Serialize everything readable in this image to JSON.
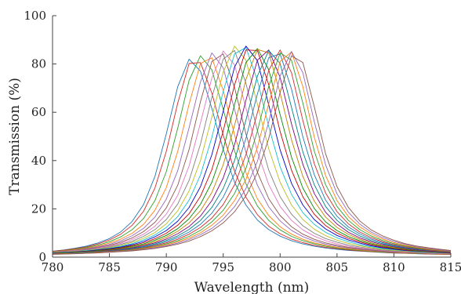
{
  "chart_data": {
    "type": "line",
    "title": "",
    "xlabel": "Wavelength (nm)",
    "ylabel": "Transmission (%)",
    "xlim": [
      780,
      815
    ],
    "ylim": [
      0,
      100
    ],
    "x_ticks": [
      "780",
      "785",
      "790",
      "795",
      "800",
      "805",
      "810",
      "815"
    ],
    "y_ticks": [
      "0",
      "20",
      "40",
      "60",
      "80",
      "100"
    ],
    "grid": false,
    "legend": "none",
    "x": [
      780,
      781,
      782,
      783,
      784,
      785,
      786,
      787,
      788,
      789,
      790,
      791,
      792,
      793,
      794,
      795,
      796,
      797,
      798,
      799,
      800,
      801,
      802,
      803,
      804,
      805,
      806,
      807,
      808,
      809,
      810,
      811,
      812,
      813,
      814,
      815
    ],
    "series_colors": [
      "#1f77b4",
      "#d62728",
      "#2ca02c",
      "#ff7f0e",
      "#9467bd",
      "#8c564b",
      "#e377c2",
      "#7f7f7f",
      "#bcbd22",
      "#17becf",
      "#0000cc",
      "#cc0000",
      "#008800",
      "#c08000",
      "#800080",
      "#008080"
    ],
    "series": [
      {
        "values": [
          2.5,
          3.0,
          3.7,
          4.6,
          5.9,
          7.7,
          10.5,
          14.8,
          21.8,
          33.4,
          51.0,
          70.6,
          82.0,
          77.0,
          61.6,
          44.6,
          31.0,
          21.6,
          15.4,
          11.4,
          8.7,
          6.8,
          5.5,
          4.5,
          3.8,
          3.2,
          2.8,
          2.5,
          2.2,
          1.9,
          1.7,
          1.6,
          1.4,
          1.3,
          1.2,
          1.1
        ]
      },
      {
        "values": [
          2.4,
          2.9,
          3.5,
          4.3,
          5.5,
          7.1,
          9.5,
          13.2,
          19.0,
          28.6,
          43.8,
          63.8,
          80.2,
          80.6,
          68.0,
          50.6,
          35.6,
          24.8,
          17.6,
          12.8,
          9.7,
          7.5,
          6.0,
          4.9,
          4.1,
          3.5,
          3.0,
          2.6,
          2.3,
          2.0,
          1.8,
          1.6,
          1.5,
          1.3,
          1.2,
          1.1
        ]
      },
      {
        "values": [
          2.3,
          2.7,
          3.3,
          4.0,
          5.0,
          6.4,
          8.4,
          11.4,
          16.0,
          23.4,
          35.4,
          53.4,
          73.2,
          83.4,
          77.6,
          61.2,
          44.0,
          30.4,
          21.2,
          15.2,
          11.3,
          8.6,
          6.8,
          5.5,
          4.5,
          3.8,
          3.2,
          2.8,
          2.4,
          2.1,
          1.9,
          1.7,
          1.5,
          1.4,
          1.3,
          1.2
        ]
      },
      {
        "values": [
          2.2,
          2.6,
          3.1,
          3.7,
          4.6,
          5.8,
          7.5,
          9.9,
          13.6,
          19.4,
          28.8,
          43.8,
          63.4,
          80.2,
          82.6,
          69.0,
          50.6,
          35.0,
          24.2,
          17.2,
          12.6,
          9.5,
          7.4,
          5.9,
          4.9,
          4.1,
          3.5,
          3.0,
          2.6,
          2.3,
          2.0,
          1.8,
          1.6,
          1.5,
          1.3,
          1.2
        ]
      },
      {
        "values": [
          2.1,
          2.5,
          2.9,
          3.5,
          4.3,
          5.3,
          6.8,
          8.9,
          11.9,
          16.6,
          24.0,
          35.8,
          53.6,
          72.6,
          84.6,
          78.4,
          61.2,
          43.4,
          29.8,
          20.8,
          15.0,
          11.1,
          8.5,
          6.7,
          5.4,
          4.5,
          3.8,
          3.2,
          2.8,
          2.4,
          2.1,
          1.9,
          1.7,
          1.5,
          1.4,
          1.3
        ]
      },
      {
        "values": [
          2.0,
          2.4,
          2.8,
          3.3,
          4.0,
          4.9,
          6.2,
          8.0,
          10.6,
          14.4,
          20.4,
          29.8,
          44.6,
          64.4,
          81.0,
          84.2,
          70.2,
          51.0,
          35.2,
          24.2,
          17.2,
          12.6,
          9.5,
          7.4,
          5.9,
          4.9,
          4.1,
          3.5,
          3.0,
          2.6,
          2.3,
          2.0,
          1.8,
          1.6,
          1.5,
          1.3
        ]
      },
      {
        "values": [
          1.9,
          2.3,
          2.7,
          3.1,
          3.8,
          4.6,
          5.7,
          7.3,
          9.5,
          12.8,
          17.8,
          25.6,
          37.8,
          55.6,
          74.2,
          85.4,
          79.6,
          61.8,
          43.6,
          30.0,
          21.0,
          15.2,
          11.3,
          8.7,
          6.8,
          5.5,
          4.5,
          3.8,
          3.2,
          2.8,
          2.4,
          2.1,
          1.9,
          1.7,
          1.5,
          1.4
        ]
      },
      {
        "values": [
          1.9,
          2.2,
          2.5,
          3.0,
          3.5,
          4.3,
          5.3,
          6.6,
          8.6,
          11.4,
          15.6,
          22.0,
          31.8,
          46.8,
          66.2,
          82.0,
          85.6,
          72.0,
          52.4,
          36.0,
          25.0,
          17.8,
          13.0,
          9.9,
          7.7,
          6.2,
          5.0,
          4.2,
          3.5,
          3.0,
          2.6,
          2.3,
          2.0,
          1.8,
          1.6,
          1.5
        ]
      },
      {
        "values": [
          1.8,
          2.1,
          2.4,
          2.8,
          3.3,
          4.0,
          4.9,
          6.1,
          7.8,
          10.2,
          13.8,
          19.2,
          27.4,
          40.0,
          58.0,
          76.6,
          87.4,
          81.6,
          63.4,
          44.8,
          31.0,
          21.6,
          15.6,
          11.6,
          8.9,
          7.0,
          5.7,
          4.7,
          3.9,
          3.3,
          2.8,
          2.5,
          2.2,
          1.9,
          1.7,
          1.6
        ]
      },
      {
        "values": [
          1.7,
          2.0,
          2.3,
          2.7,
          3.1,
          3.7,
          4.5,
          5.6,
          7.1,
          9.2,
          12.3,
          16.8,
          23.6,
          34.0,
          49.6,
          68.6,
          84.2,
          86.8,
          73.2,
          54.0,
          37.4,
          26.0,
          18.4,
          13.6,
          10.3,
          8.0,
          6.4,
          5.2,
          4.3,
          3.6,
          3.1,
          2.7,
          2.3,
          2.1,
          1.8,
          1.7
        ]
      },
      {
        "values": [
          1.7,
          1.9,
          2.2,
          2.5,
          3.0,
          3.5,
          4.2,
          5.2,
          6.5,
          8.4,
          11.0,
          14.9,
          20.6,
          29.2,
          42.4,
          60.4,
          78.8,
          87.4,
          81.4,
          63.0,
          44.4,
          30.6,
          21.6,
          15.6,
          11.7,
          9.0,
          7.1,
          5.8,
          4.7,
          3.9,
          3.3,
          2.8,
          2.5,
          2.2,
          1.9,
          1.7
        ]
      },
      {
        "values": [
          1.6,
          1.8,
          2.1,
          2.4,
          2.8,
          3.3,
          3.9,
          4.8,
          6.0,
          7.6,
          9.9,
          13.2,
          18.0,
          25.2,
          36.2,
          52.2,
          71.4,
          85.8,
          85.6,
          71.4,
          52.0,
          36.0,
          25.0,
          17.8,
          13.1,
          10.0,
          7.8,
          6.3,
          5.1,
          4.2,
          3.5,
          3.0,
          2.6,
          2.3,
          2.0,
          1.8
        ]
      },
      {
        "values": [
          1.6,
          1.8,
          2.0,
          2.3,
          2.7,
          3.1,
          3.7,
          4.5,
          5.5,
          7.0,
          9.0,
          11.8,
          15.9,
          21.9,
          31.0,
          44.6,
          63.2,
          80.6,
          86.4,
          77.6,
          59.0,
          41.4,
          28.6,
          20.2,
          14.6,
          11.0,
          8.5,
          6.8,
          5.5,
          4.5,
          3.7,
          3.2,
          2.7,
          2.4,
          2.1,
          1.9
        ]
      },
      {
        "values": [
          1.5,
          1.7,
          1.9,
          2.2,
          2.5,
          2.9,
          3.5,
          4.2,
          5.1,
          6.4,
          8.2,
          10.7,
          14.2,
          19.2,
          26.8,
          38.2,
          54.6,
          73.6,
          86.0,
          84.6,
          68.0,
          48.6,
          33.4,
          23.2,
          16.6,
          12.3,
          9.4,
          7.4,
          5.9,
          4.8,
          4.0,
          3.4,
          2.9,
          2.5,
          2.2,
          1.9
        ]
      },
      {
        "values": [
          1.5,
          1.6,
          1.8,
          2.1,
          2.4,
          2.8,
          3.3,
          3.9,
          4.8,
          5.9,
          7.5,
          9.7,
          12.7,
          17.0,
          23.4,
          32.8,
          46.6,
          65.0,
          81.6,
          85.8,
          74.4,
          55.2,
          38.4,
          26.4,
          18.6,
          13.7,
          10.3,
          8.0,
          6.4,
          5.2,
          4.3,
          3.6,
          3.0,
          2.6,
          2.3,
          2.0
        ]
      },
      {
        "values": [
          1.4,
          1.6,
          1.8,
          2.0,
          2.3,
          2.6,
          3.1,
          3.7,
          4.4,
          5.5,
          6.9,
          8.8,
          11.5,
          15.2,
          20.6,
          28.4,
          40.0,
          56.8,
          75.0,
          85.6,
          80.2,
          62.0,
          43.6,
          30.0,
          21.0,
          15.2,
          11.4,
          8.8,
          6.9,
          5.6,
          4.6,
          3.8,
          3.2,
          2.8,
          2.4,
          2.1
        ]
      },
      {
        "values": [
          1.4,
          1.5,
          1.7,
          1.9,
          2.2,
          2.5,
          2.9,
          3.5,
          4.2,
          5.1,
          6.4,
          8.1,
          10.4,
          13.6,
          18.2,
          24.8,
          34.6,
          49.2,
          67.6,
          82.6,
          84.2,
          69.6,
          49.8,
          34.2,
          23.6,
          16.9,
          12.5,
          9.6,
          7.5,
          6.0,
          4.9,
          4.0,
          3.4,
          2.9,
          2.5,
          2.2
        ]
      },
      {
        "values": [
          1.3,
          1.5,
          1.6,
          1.8,
          2.1,
          2.4,
          2.8,
          3.3,
          3.9,
          4.8,
          5.9,
          7.4,
          9.5,
          12.3,
          16.2,
          21.8,
          30.0,
          42.4,
          59.8,
          77.4,
          85.8,
          76.4,
          56.6,
          38.8,
          26.6,
          18.8,
          13.8,
          10.4,
          8.1,
          6.4,
          5.2,
          4.3,
          3.6,
          3.0,
          2.6,
          2.3
        ]
      },
      {
        "values": [
          1.3,
          1.4,
          1.6,
          1.8,
          2.0,
          2.3,
          2.6,
          3.1,
          3.7,
          4.4,
          5.5,
          6.8,
          8.6,
          11.1,
          14.6,
          19.4,
          26.4,
          36.8,
          52.2,
          70.8,
          84.6,
          81.6,
          63.8,
          44.0,
          30.0,
          21.0,
          15.2,
          11.4,
          8.8,
          6.9,
          5.6,
          4.6,
          3.8,
          3.2,
          2.8,
          2.4
        ]
      },
      {
        "values": [
          1.3,
          1.4,
          1.5,
          1.7,
          1.9,
          2.2,
          2.5,
          2.9,
          3.5,
          4.2,
          5.1,
          6.3,
          7.9,
          10.1,
          13.2,
          17.4,
          23.4,
          32.2,
          45.4,
          63.6,
          81.0,
          85.0,
          70.6,
          49.8,
          33.8,
          23.4,
          16.8,
          12.5,
          9.6,
          7.5,
          6.0,
          4.9,
          4.1,
          3.4,
          2.9,
          2.5
        ]
      },
      {
        "values": [
          1.2,
          1.3,
          1.5,
          1.6,
          1.8,
          2.1,
          2.4,
          2.8,
          3.3,
          3.9,
          4.7,
          5.8,
          7.3,
          9.3,
          11.9,
          15.7,
          20.9,
          28.4,
          39.6,
          56.0,
          75.0,
          85.2,
          76.4,
          56.2,
          38.2,
          26.2,
          18.6,
          13.7,
          10.4,
          8.1,
          6.5,
          5.3,
          4.3,
          3.6,
          3.1,
          2.6
        ]
      },
      {
        "values": [
          1.2,
          1.3,
          1.4,
          1.6,
          1.8,
          2.0,
          2.3,
          2.6,
          3.1,
          3.6,
          4.4,
          5.4,
          6.7,
          8.5,
          10.9,
          14.2,
          18.8,
          25.4,
          35.0,
          49.2,
          68.2,
          83.4,
          80.6,
          62.4,
          42.8,
          29.2,
          20.6,
          15.0,
          11.3,
          8.8,
          7.0,
          5.6,
          4.6,
          3.9,
          3.3,
          2.8
        ]
      }
    ]
  }
}
